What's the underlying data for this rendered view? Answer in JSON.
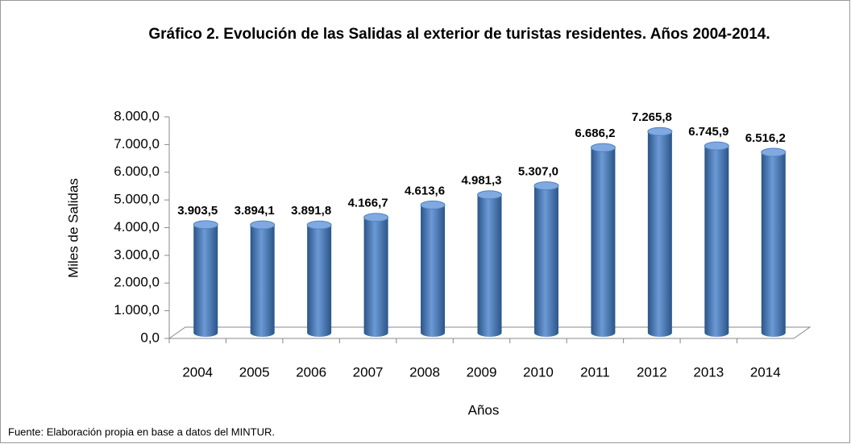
{
  "chart_data": {
    "type": "bar",
    "title": "Gráfico 2. Evolución de las Salidas al exterior de turistas residentes. Años 2004-2014.",
    "y_label": "Miles de Salidas",
    "x_label": "Años",
    "source": "Fuente: Elaboración propia en base a datos del MINTUR.",
    "categories": [
      "2004",
      "2005",
      "2006",
      "2007",
      "2008",
      "2009",
      "2010",
      "2011",
      "2012",
      "2013",
      "2014"
    ],
    "values": [
      3903.5,
      3894.1,
      3891.8,
      4166.7,
      4613.6,
      4981.3,
      5307.0,
      6686.2,
      7265.8,
      6745.9,
      6516.2
    ],
    "value_labels": [
      "3.903,5",
      "3.894,1",
      "3.891,8",
      "4.166,7",
      "4.613,6",
      "4.981,3",
      "5.307,0",
      "6.686,2",
      "7.265,8",
      "6.745,9",
      "6.516,2"
    ],
    "color": "#4f81bd",
    "ylim": [
      0,
      8000
    ],
    "yticks": [
      {
        "value": 0,
        "label": "0,0"
      },
      {
        "value": 1000,
        "label": "1.000,0"
      },
      {
        "value": 2000,
        "label": "2.000,0"
      },
      {
        "value": 3000,
        "label": "3.000,0"
      },
      {
        "value": 4000,
        "label": "4.000,0"
      },
      {
        "value": 5000,
        "label": "5.000,0"
      },
      {
        "value": 6000,
        "label": "6.000,0"
      },
      {
        "value": 7000,
        "label": "7.000,0"
      },
      {
        "value": 8000,
        "label": "8.000,0"
      }
    ]
  }
}
